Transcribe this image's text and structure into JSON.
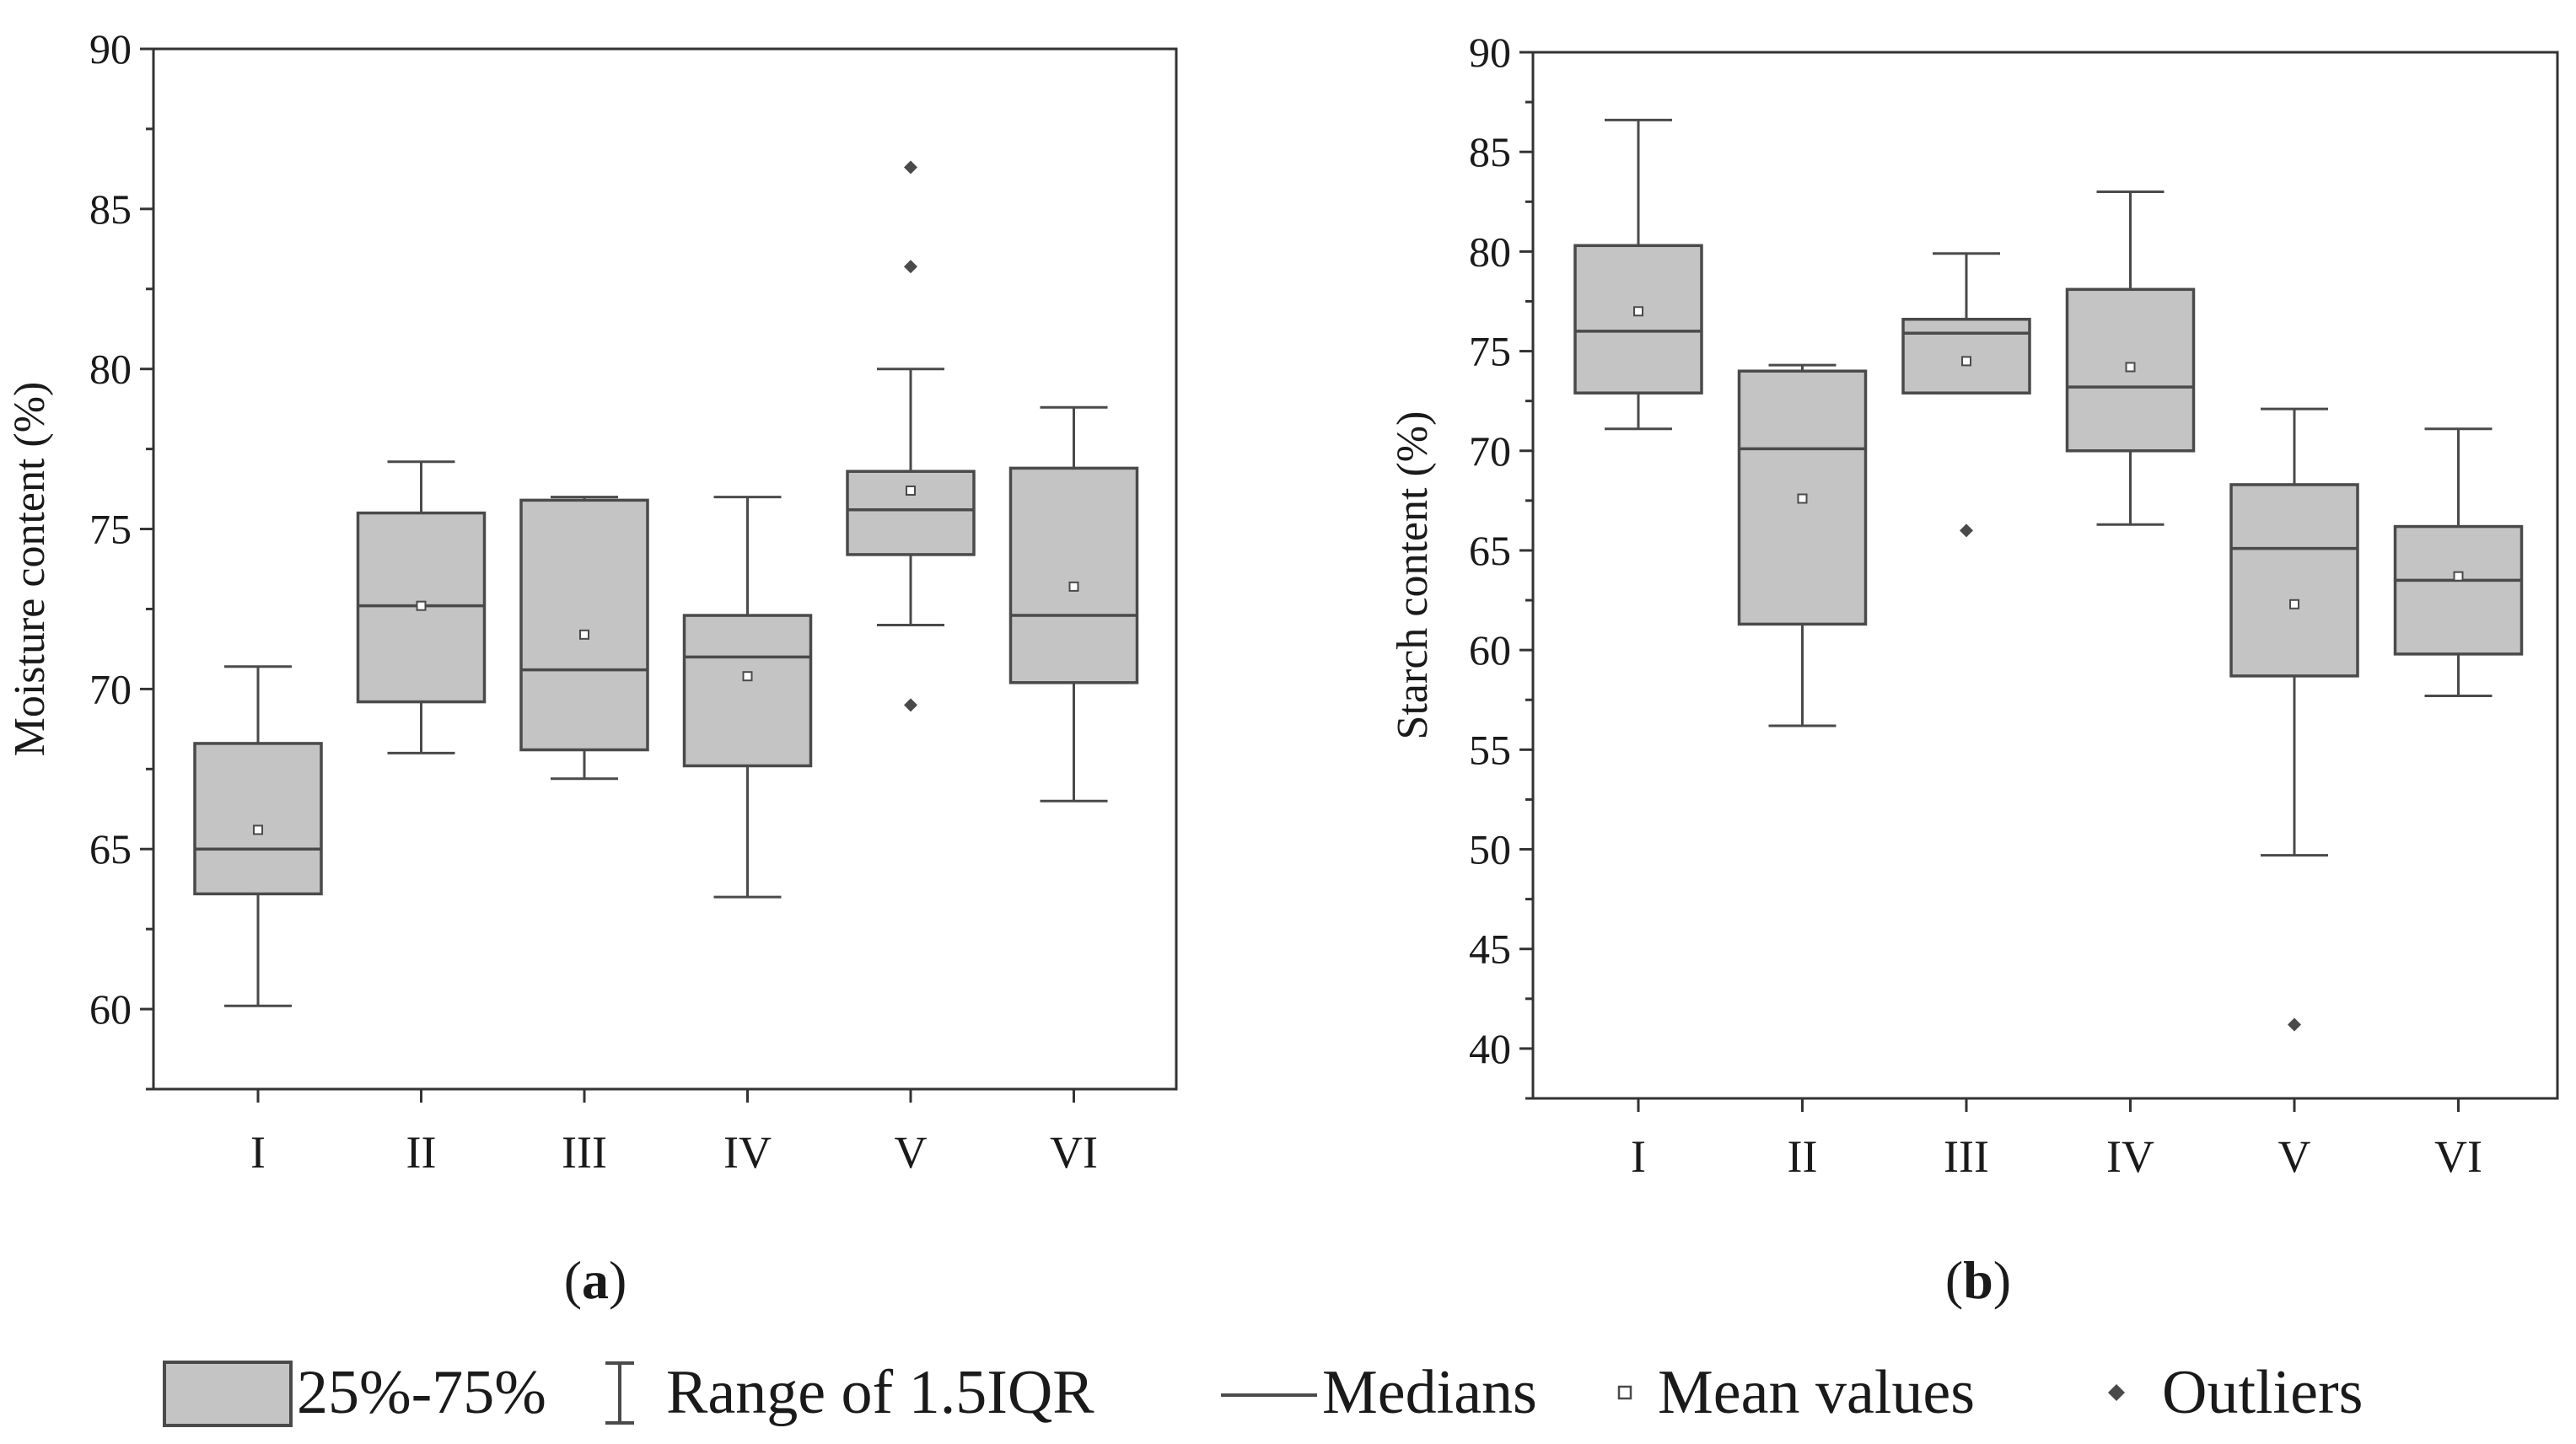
{
  "panel_labels": [
    "(a)",
    "(b)"
  ],
  "legend": {
    "box": "25%-75%",
    "whisker": "Range of 1.5IQR",
    "median": "Medians",
    "mean": "Mean values",
    "outlier": "Outliers"
  },
  "colors": {
    "box_fill": "#c4c4c4",
    "stroke": "#4a4a4a",
    "axis": "#333333",
    "text": "#1a1a1a"
  },
  "chart_data": [
    {
      "type": "box",
      "title": "",
      "xlabel": "",
      "ylabel": "Moisture content (%)",
      "ylim": [
        57.5,
        90
      ],
      "yticks": [
        60,
        65,
        70,
        75,
        80,
        85,
        90
      ],
      "categories": [
        "I",
        "II",
        "III",
        "IV",
        "V",
        "VI"
      ],
      "boxes": [
        {
          "category": "I",
          "whisker_low": 60.1,
          "q1": 63.6,
          "median": 65.0,
          "q3": 68.3,
          "whisker_high": 70.7,
          "mean": 65.6,
          "outliers": []
        },
        {
          "category": "II",
          "whisker_low": 68.0,
          "q1": 69.6,
          "median": 72.6,
          "q3": 75.5,
          "whisker_high": 77.1,
          "mean": 72.6,
          "outliers": []
        },
        {
          "category": "III",
          "whisker_low": 67.2,
          "q1": 68.1,
          "median": 70.6,
          "q3": 75.9,
          "whisker_high": 76.0,
          "mean": 71.7,
          "outliers": []
        },
        {
          "category": "IV",
          "whisker_low": 63.5,
          "q1": 67.6,
          "median": 71.0,
          "q3": 72.3,
          "whisker_high": 76.0,
          "mean": 70.4,
          "outliers": []
        },
        {
          "category": "V",
          "whisker_low": 72.0,
          "q1": 74.2,
          "median": 75.6,
          "q3": 76.8,
          "whisker_high": 80.0,
          "mean": 76.2,
          "outliers": [
            86.3,
            83.2,
            69.5
          ]
        },
        {
          "category": "VI",
          "whisker_low": 66.5,
          "q1": 70.2,
          "median": 72.3,
          "q3": 76.9,
          "whisker_high": 78.8,
          "mean": 73.2,
          "outliers": []
        }
      ]
    },
    {
      "type": "box",
      "title": "",
      "xlabel": "",
      "ylabel": "Starch content (%)",
      "ylim": [
        37.5,
        90
      ],
      "yticks": [
        40,
        45,
        50,
        55,
        60,
        65,
        70,
        75,
        80,
        85,
        90
      ],
      "categories": [
        "I",
        "II",
        "III",
        "IV",
        "V",
        "VI"
      ],
      "boxes": [
        {
          "category": "I",
          "whisker_low": 71.1,
          "q1": 72.9,
          "median": 76.0,
          "q3": 80.3,
          "whisker_high": 86.6,
          "mean": 77.0,
          "outliers": []
        },
        {
          "category": "II",
          "whisker_low": 56.2,
          "q1": 61.3,
          "median": 70.1,
          "q3": 74.0,
          "whisker_high": 74.3,
          "mean": 67.6,
          "outliers": []
        },
        {
          "category": "III",
          "whisker_low": 72.9,
          "q1": 72.9,
          "median": 75.9,
          "q3": 76.6,
          "whisker_high": 79.9,
          "mean": 74.5,
          "outliers": [
            66.0
          ]
        },
        {
          "category": "IV",
          "whisker_low": 66.3,
          "q1": 70.0,
          "median": 73.2,
          "q3": 78.1,
          "whisker_high": 83.0,
          "mean": 74.2,
          "outliers": []
        },
        {
          "category": "V",
          "whisker_low": 49.7,
          "q1": 58.7,
          "median": 65.1,
          "q3": 68.3,
          "whisker_high": 72.1,
          "mean": 62.3,
          "outliers": [
            41.2
          ]
        },
        {
          "category": "VI",
          "whisker_low": 57.7,
          "q1": 59.8,
          "median": 63.5,
          "q3": 66.2,
          "whisker_high": 71.1,
          "mean": 63.7,
          "outliers": []
        }
      ]
    }
  ]
}
